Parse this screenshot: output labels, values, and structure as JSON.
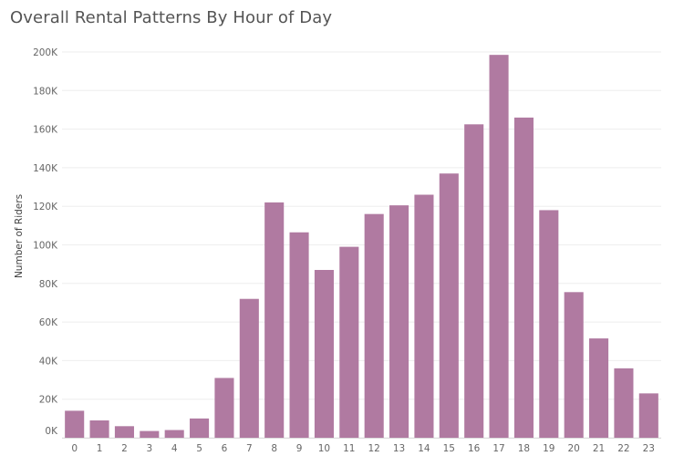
{
  "chart_data": {
    "type": "bar",
    "title": "Overall Rental Patterns By Hour of Day",
    "xlabel": "",
    "ylabel": "Number of Riders",
    "categories": [
      "0",
      "1",
      "2",
      "3",
      "4",
      "5",
      "6",
      "7",
      "8",
      "9",
      "10",
      "11",
      "12",
      "13",
      "14",
      "15",
      "16",
      "17",
      "18",
      "19",
      "20",
      "21",
      "22",
      "23"
    ],
    "values": [
      14000,
      9000,
      6000,
      3500,
      4000,
      10000,
      31000,
      72000,
      122000,
      106500,
      87000,
      99000,
      116000,
      120500,
      126000,
      137000,
      162500,
      198500,
      166000,
      118000,
      75500,
      51500,
      36000,
      23000
    ],
    "ylim": [
      0,
      200000
    ],
    "yticks": [
      0,
      20000,
      40000,
      60000,
      80000,
      100000,
      120000,
      140000,
      160000,
      180000,
      200000
    ],
    "ytick_labels": [
      "0K",
      "20K",
      "40K",
      "60K",
      "80K",
      "100K",
      "120K",
      "140K",
      "160K",
      "180K",
      "200K"
    ],
    "bar_color": "#b07aa1",
    "grid": true,
    "legend": "none"
  }
}
